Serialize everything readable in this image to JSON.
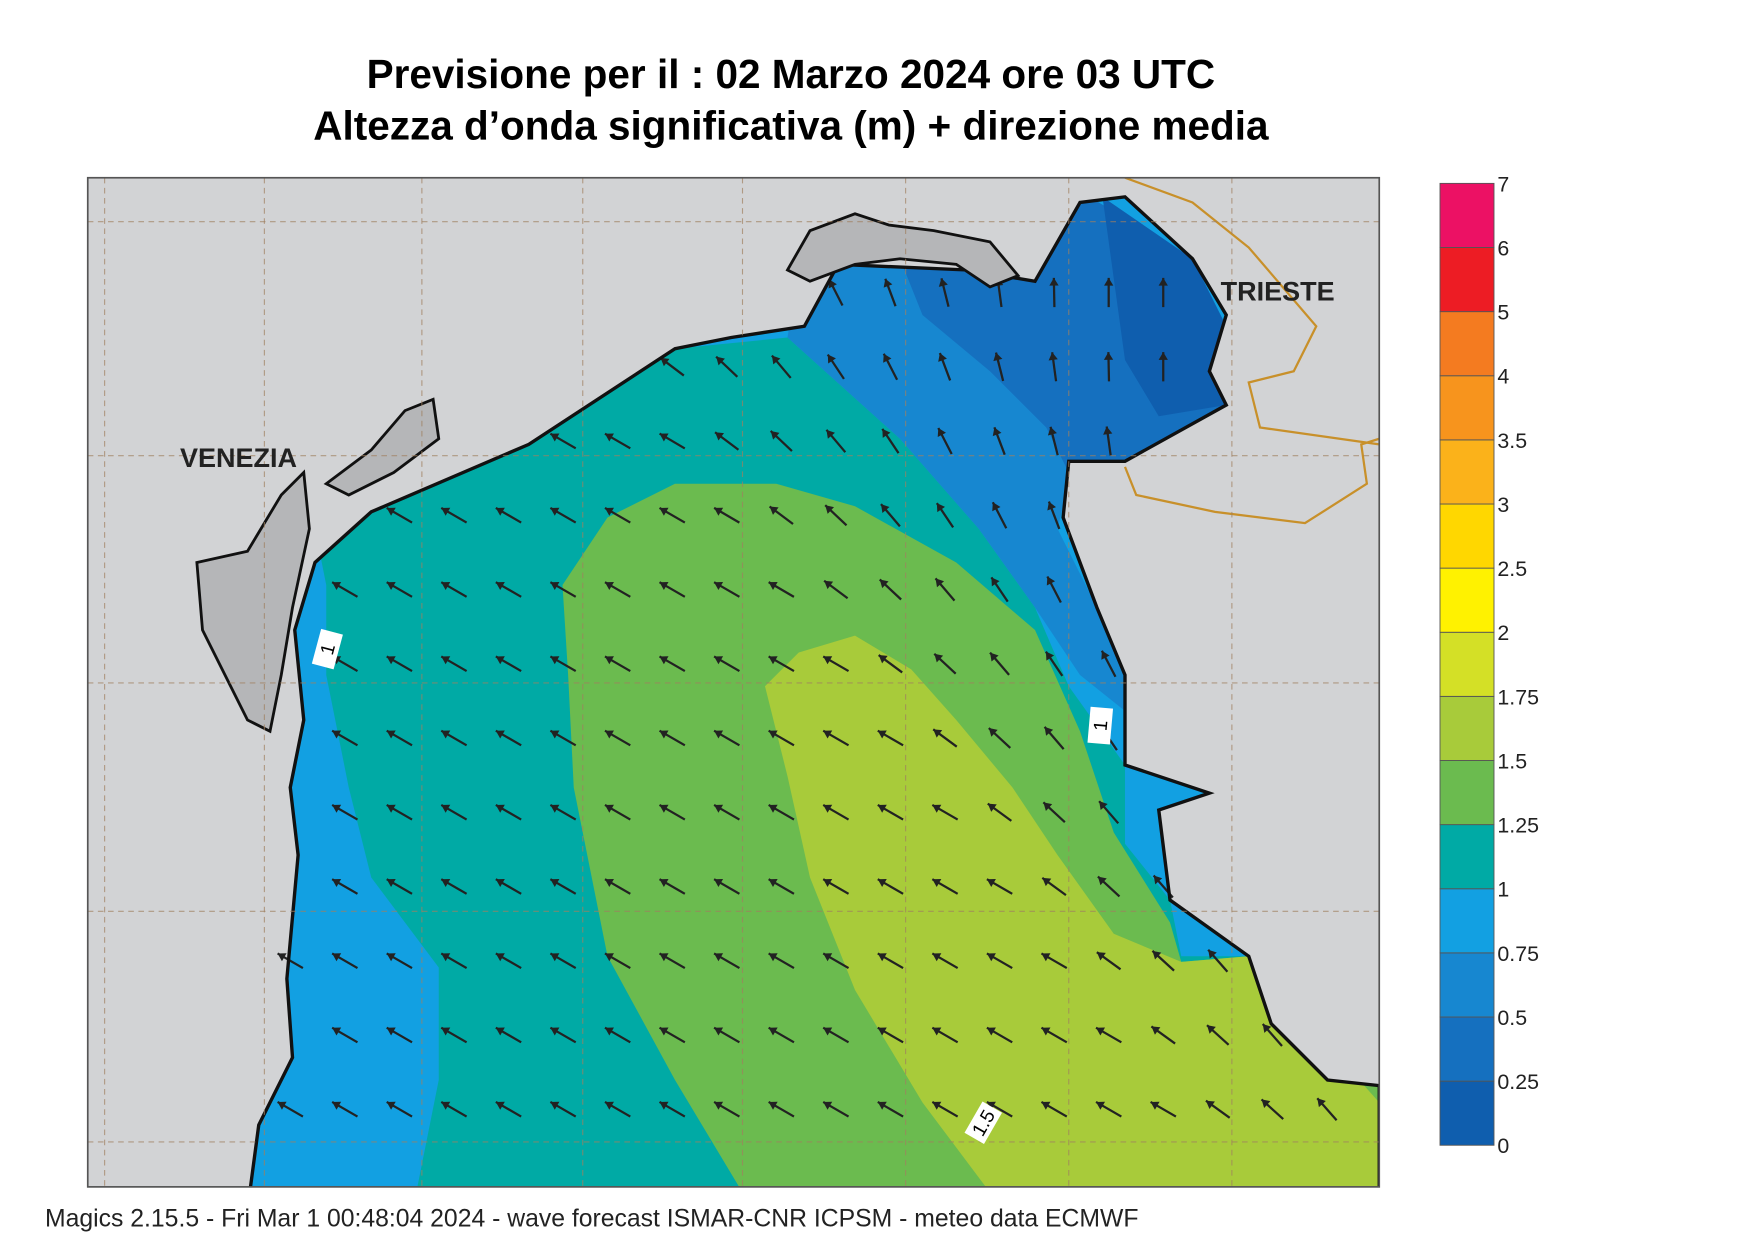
{
  "header": {
    "title": "Previsione per il  :  02   Marzo   2024   ore 03 UTC",
    "subtitle": "Altezza d’onda significativa (m) + direzione media"
  },
  "map": {
    "places": [
      "VENEZIA",
      "TRIESTE"
    ],
    "contour_labels": [
      "1",
      "1",
      "1.5"
    ]
  },
  "legend": {
    "labels": [
      "0",
      "0.25",
      "0.5",
      "0.75",
      "1",
      "1.25",
      "1.5",
      "1.75",
      "2",
      "2.5",
      "3",
      "3.5",
      "4",
      "5",
      "6",
      "7"
    ],
    "colors": [
      "#0f5eae",
      "#1570bf",
      "#1787d0",
      "#12a0e2",
      "#00aaa5",
      "#6bbb4f",
      "#a8cb3a",
      "#d4e026",
      "#fff200",
      "#ffd700",
      "#fbb21a",
      "#f7941d",
      "#f47b20",
      "#ed1c24",
      "#ec1164"
    ]
  },
  "footer": "Magics 2.15.5 - Fri Mar  1 00:48:04 2024 - wave forecast  ISMAR-CNR  ICPSM - meteo data   ECMWF"
}
